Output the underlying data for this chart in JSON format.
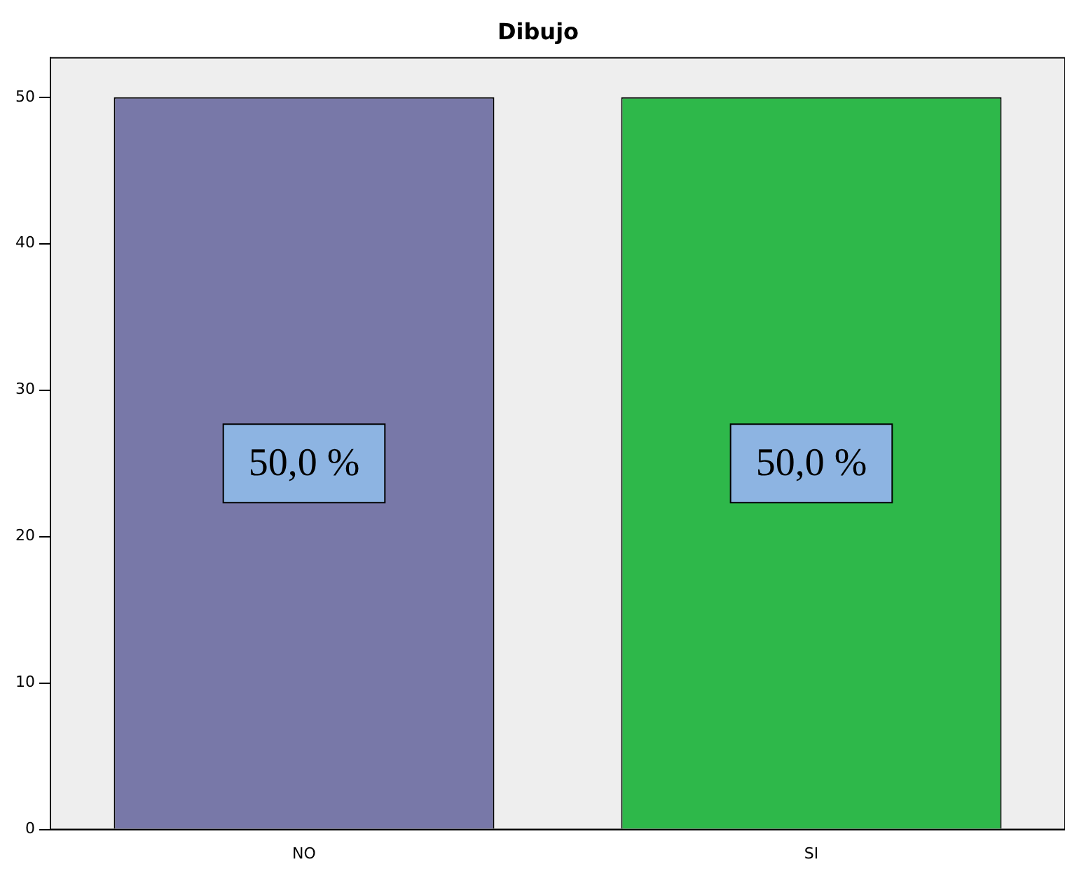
{
  "chart_data": {
    "type": "bar",
    "title": "Dibujo",
    "categories": [
      "NO",
      "SI"
    ],
    "values": [
      50,
      50
    ],
    "colors": [
      "#7878a8",
      "#2eb84a"
    ],
    "value_labels": [
      "50,0 %",
      "50,0 %"
    ],
    "ylim": [
      0,
      52.7
    ],
    "yticks": [
      0,
      10,
      20,
      30,
      40,
      50
    ],
    "grid": false,
    "legend": false
  }
}
